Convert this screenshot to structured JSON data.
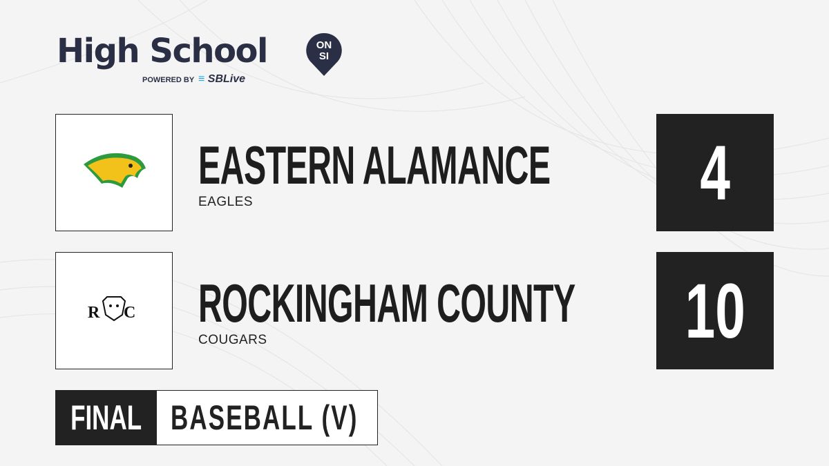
{
  "brand": {
    "title": "High School",
    "badge_top": "ON",
    "badge_bottom": "SI",
    "powered_by": "POWERED BY",
    "partner": "SBLive"
  },
  "teams": [
    {
      "name": "EASTERN ALAMANCE",
      "mascot": "EAGLES",
      "score": "4",
      "logo": "eagle-logo"
    },
    {
      "name": "ROCKINGHAM COUNTY",
      "mascot": "COUGARS",
      "score": "10",
      "logo": "rc-cougar-logo"
    }
  ],
  "game": {
    "status": "FINAL",
    "sport": "BASEBALL (V)"
  },
  "colors": {
    "dark": "#222222",
    "brand_navy": "#2b2f45",
    "sblive_blue": "#1ea7e1",
    "eagle_green": "#2e9a3e",
    "eagle_gold": "#f2c21b"
  }
}
